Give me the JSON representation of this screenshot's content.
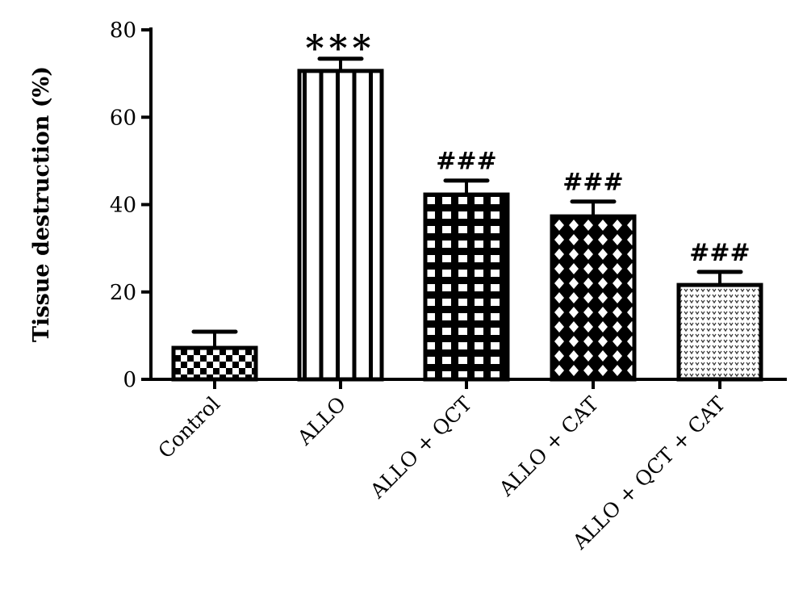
{
  "chart_data": {
    "type": "bar",
    "title": "",
    "xlabel": "",
    "ylabel": "Tissue destruction (%)",
    "ylim": [
      0,
      80
    ],
    "yticks": [
      0,
      20,
      40,
      60,
      80
    ],
    "grid": false,
    "categories": [
      "Control",
      "ALLO",
      "ALLO + QCT",
      "ALLO + CAT",
      "ALLO + QCT + CAT"
    ],
    "values": [
      7.2,
      70.6,
      42.3,
      37.3,
      21.6
    ],
    "errors": [
      3.7,
      2.8,
      3.2,
      3.4,
      3.0
    ],
    "annotations": [
      "",
      "***",
      "###",
      "###",
      "###"
    ],
    "patterns": [
      "checker",
      "vertical-stripes",
      "grid",
      "diamond-lattice",
      "dotted"
    ],
    "bar_color": "#000000"
  }
}
